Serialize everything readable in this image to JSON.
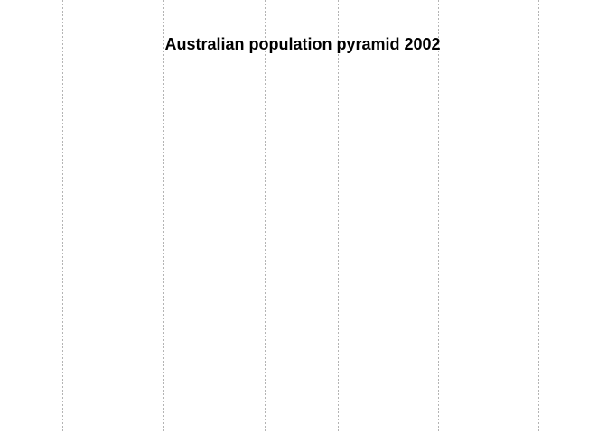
{
  "chart_data": {
    "type": "bar",
    "title": "Australian population pyramid 2002",
    "subtitle": "",
    "xlabel": "",
    "ylabel": "",
    "categories": [],
    "series": [],
    "grid": true,
    "grid_style": "dotted-vertical",
    "grid_line_count": 6,
    "colors": {
      "grid": "#b4b4b4",
      "title": "#000000",
      "background": "#ffffff"
    }
  }
}
